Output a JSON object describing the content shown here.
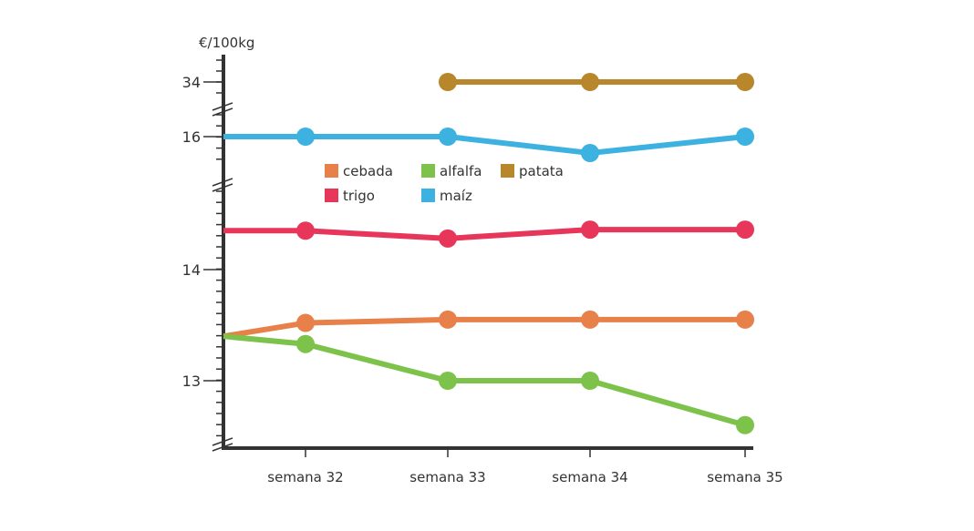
{
  "chart_data": {
    "type": "line",
    "ylabel": "€/100kg",
    "categories": [
      "",
      "semana 32",
      "semana 33",
      "semana 34",
      "semana 35"
    ],
    "y_axis": {
      "broken": true,
      "tick_labels": [
        "34",
        "16",
        "14",
        "13"
      ],
      "minor_tick_step": 0.1
    },
    "grid": false,
    "legend_position": "center",
    "series": [
      {
        "name": "cebada",
        "color": "#e8804a",
        "values": [
          13.4,
          13.52,
          13.55,
          13.55,
          13.55
        ]
      },
      {
        "name": "alfalfa",
        "color": "#7dc24b",
        "values": [
          13.4,
          13.33,
          13.0,
          13.0,
          12.6
        ]
      },
      {
        "name": "patata",
        "color": "#b8862b",
        "values": [
          null,
          null,
          34,
          34,
          34
        ]
      },
      {
        "name": "trigo",
        "color": "#e8365a",
        "values": [
          14.35,
          14.35,
          14.28,
          14.36,
          14.36
        ]
      },
      {
        "name": "maíz",
        "color": "#3db2e0",
        "values": [
          16,
          16,
          16,
          15.85,
          16
        ]
      }
    ]
  }
}
